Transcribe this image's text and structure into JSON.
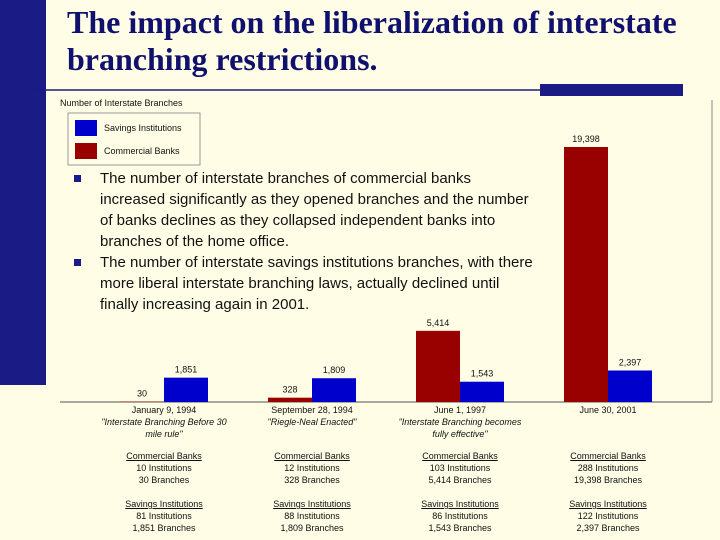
{
  "title": "The impact on the liberalization of interstate branching restrictions.",
  "bullets": [
    "The number of interstate branches of commercial banks increased significantly as they opened branches and the number of banks declines as they collapsed independent banks into branches of the home office.",
    "The number of interstate savings institutions branches, with there more liberal interstate branching laws, actually declined until finally increasing again in 2001."
  ],
  "chart_data": {
    "type": "bar",
    "title": "Number of Interstate Branches",
    "categories": [
      "January 9, 1994",
      "September 28, 1994",
      "June 1, 1997",
      "June 30, 2001"
    ],
    "series": [
      {
        "name": "Commercial Banks",
        "color": "#990000",
        "values": [
          30,
          328,
          5414,
          19398
        ],
        "value_labels": [
          "30",
          "328",
          "5,414",
          "19,398"
        ]
      },
      {
        "name": "Savings Institutions",
        "color": "#0000cc",
        "values": [
          1851,
          1809,
          1543,
          2397
        ],
        "value_labels": [
          "1,851",
          "1,809",
          "1,543",
          "2,397"
        ]
      }
    ],
    "details": [
      {
        "note": "\"Interstate Branching Before 30 mile rule\"",
        "commercial": [
          "Commercial Banks",
          "10 Institutions",
          "30 Branches"
        ],
        "savings": [
          "Savings Institutions",
          "81 Institutions",
          "1,851 Branches"
        ]
      },
      {
        "note": "\"Riegle-Neal Enacted\"",
        "commercial": [
          "Commercial Banks",
          "12 Institutions",
          "328 Branches"
        ],
        "savings": [
          "Savings Institutions",
          "88 Institutions",
          "1,809 Branches"
        ]
      },
      {
        "note": "\"Interstate Branching becomes fully effective\"",
        "commercial": [
          "Commercial Banks",
          "103 Institutions",
          "5,414 Branches"
        ],
        "savings": [
          "Savings Institutions",
          "86 Institutions",
          "1,543 Branches"
        ]
      },
      {
        "commercial": [
          "Commercial Banks",
          "288 Institutions",
          "19,398 Branches"
        ],
        "savings": [
          "Savings Institutions",
          "122 Institutions",
          "2,397 Branches"
        ]
      }
    ]
  }
}
